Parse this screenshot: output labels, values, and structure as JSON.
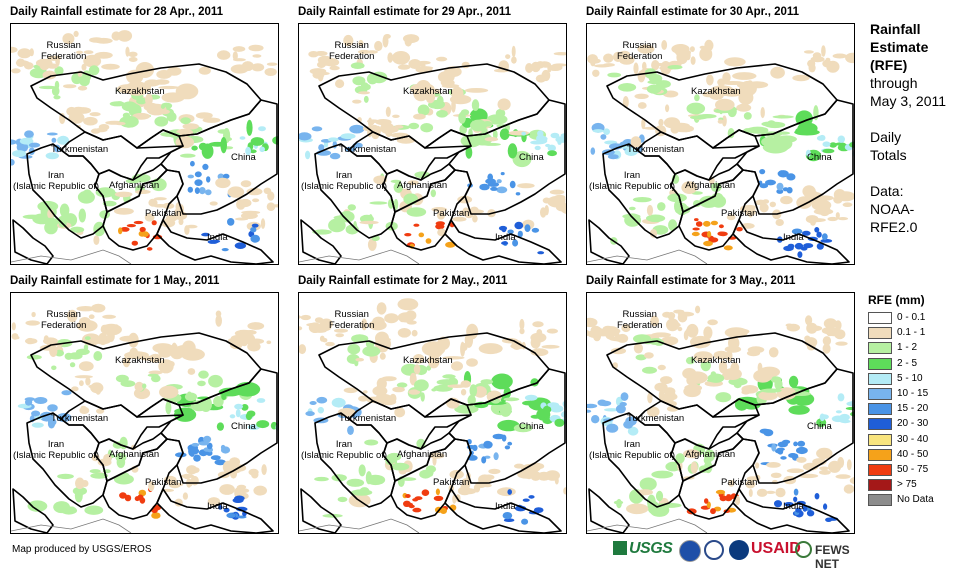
{
  "panels": [
    {
      "title": "Daily Rainfall estimate for 28 Apr., 2011"
    },
    {
      "title": "Daily Rainfall estimate for 29 Apr., 2011"
    },
    {
      "title": "Daily Rainfall estimate for 30 Apr., 2011"
    },
    {
      "title": "Daily Rainfall estimate for 1 May., 2011"
    },
    {
      "title": "Daily Rainfall estimate for 2 May., 2011"
    },
    {
      "title": "Daily Rainfall estimate for 3 May., 2011"
    }
  ],
  "map_labels": {
    "russia": "Russian\nFederation",
    "kazakhstan": "Kazakhstan",
    "turkmenistan": "Turkmenistan",
    "iran": "Iran\n(Islamic Republic of)",
    "afghanistan": "Afghanistan",
    "pakistan": "Pakistan",
    "china": "China",
    "india": "India"
  },
  "side": {
    "title_line1": "Rainfall",
    "title_line2": "Estimate",
    "title_line3": "(RFE)",
    "through": "through",
    "date": "May 3, 2011",
    "daily": "Daily",
    "totals": "Totals",
    "data": "Data:",
    "source1": "NOAA-",
    "source2": "RFE2.0"
  },
  "legend": {
    "title": "RFE (mm)",
    "items": [
      {
        "label": "0 - 0.1",
        "color": "#ffffff"
      },
      {
        "label": "0.1 - 1",
        "color": "#f0dcbc"
      },
      {
        "label": "1 - 2",
        "color": "#b6f0a2"
      },
      {
        "label": "2 - 5",
        "color": "#5edc5a"
      },
      {
        "label": "5 - 10",
        "color": "#b4ecf6"
      },
      {
        "label": "10 - 15",
        "color": "#78b4ee"
      },
      {
        "label": "15 - 20",
        "color": "#4a94e6"
      },
      {
        "label": "20 - 30",
        "color": "#1f5ed8"
      },
      {
        "label": "30 - 40",
        "color": "#f8e47e"
      },
      {
        "label": "40 - 50",
        "color": "#f5a21a"
      },
      {
        "label": "50 - 75",
        "color": "#f03c10"
      },
      {
        "label": "> 75",
        "color": "#a41818"
      },
      {
        "label": "No Data",
        "color": "#8c8c8c"
      }
    ]
  },
  "footer": {
    "credit": "Map produced by USGS/EROS",
    "logos": {
      "usgs": "USGS",
      "usaid": "USAID",
      "fews": "FEWS NET"
    }
  }
}
